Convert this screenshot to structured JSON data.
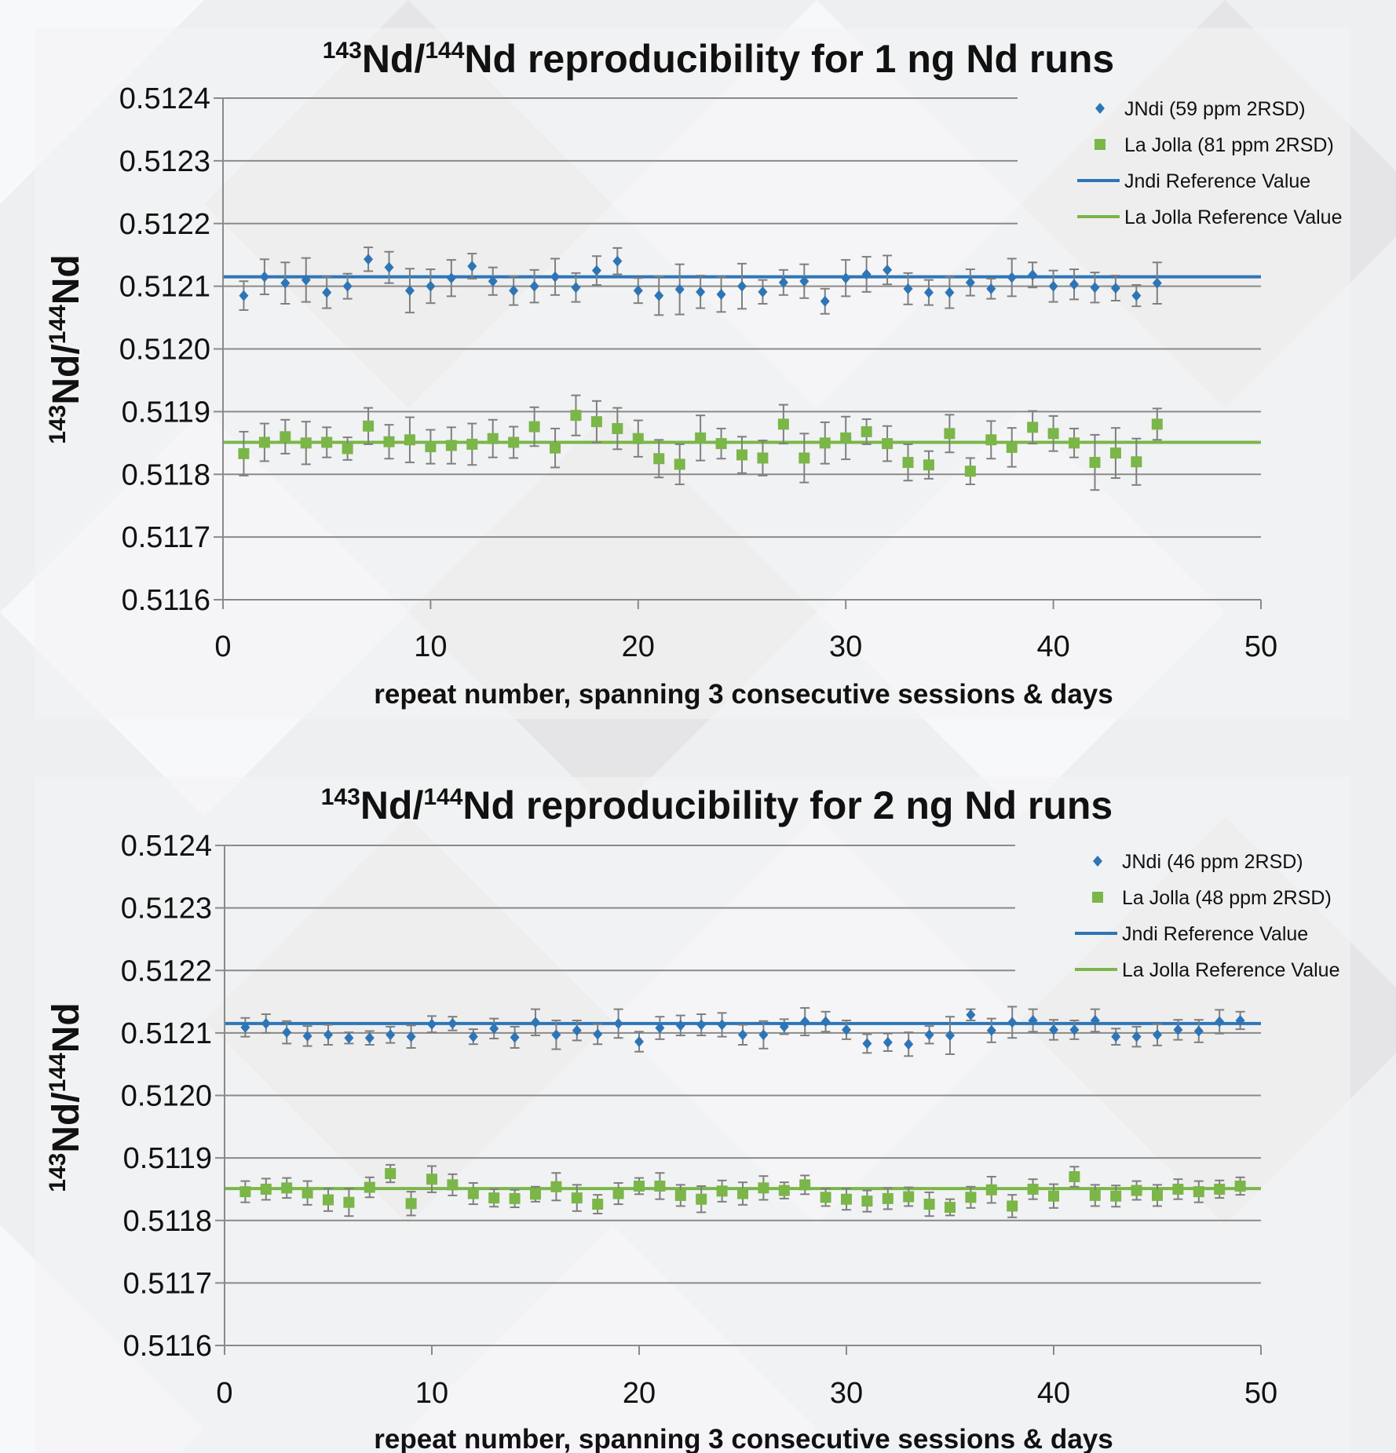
{
  "chart_data": [
    {
      "type": "scatter",
      "title_prefix_sup": "143",
      "title_mid": "Nd/",
      "title_sup2": "144",
      "title_rest": "Nd reproducibility for 1 ng Nd runs",
      "xlabel": "repeat number, spanning 3 consecutive sessions & days",
      "ylabel_sup1": "143",
      "ylabel_mid": "Nd/",
      "ylabel_sup2": "144",
      "ylabel_end": "Nd",
      "xlim": [
        0,
        50
      ],
      "ylim": [
        0.5116,
        0.5124
      ],
      "x_ticks": [
        "0",
        "10",
        "20",
        "30",
        "40",
        "50"
      ],
      "y_ticks": [
        "0.5116",
        "0.5117",
        "0.5118",
        "0.5119",
        "0.5120",
        "0.5121",
        "0.5122",
        "0.5123",
        "0.5124"
      ],
      "grid": true,
      "legend_position": "top-right",
      "series": [
        {
          "name": "JNdi (59 ppm 2RSD)",
          "marker": "diamond",
          "color": "#2e75b6",
          "x": [
            1,
            2,
            3,
            4,
            5,
            6,
            7,
            8,
            9,
            10,
            11,
            12,
            13,
            14,
            15,
            16,
            17,
            18,
            19,
            20,
            21,
            22,
            23,
            24,
            25,
            26,
            27,
            28,
            29,
            30,
            31,
            32,
            33,
            34,
            35,
            36,
            37,
            38,
            39,
            40,
            41,
            42,
            43,
            44,
            45
          ],
          "y": [
            0.512085,
            0.512115,
            0.512105,
            0.51211,
            0.51209,
            0.5121,
            0.512143,
            0.51213,
            0.512093,
            0.5121,
            0.512113,
            0.512132,
            0.512108,
            0.512093,
            0.5121,
            0.512115,
            0.512098,
            0.512125,
            0.51214,
            0.512093,
            0.512085,
            0.512095,
            0.512091,
            0.512087,
            0.5121,
            0.512091,
            0.512106,
            0.512108,
            0.512076,
            0.512113,
            0.512119,
            0.512126,
            0.512096,
            0.51209,
            0.51209,
            0.512106,
            0.512096,
            0.512114,
            0.512118,
            0.5121,
            0.512103,
            0.512098,
            0.512097,
            0.512085,
            0.512105
          ],
          "err": [
            2.3e-05,
            2.8e-05,
            3.3e-05,
            3.5e-05,
            2.5e-05,
            2e-05,
            1.9e-05,
            2.5e-05,
            3.5e-05,
            2.7e-05,
            2.9e-05,
            2e-05,
            2.2e-05,
            2.3e-05,
            2.6e-05,
            2.9e-05,
            2.3e-05,
            2.3e-05,
            2.1e-05,
            2e-05,
            3.1e-05,
            4e-05,
            2.6e-05,
            2.8e-05,
            3.6e-05,
            1.9e-05,
            2e-05,
            2.7e-05,
            2e-05,
            2.9e-05,
            2.8e-05,
            2.3e-05,
            2.5e-05,
            2e-05,
            2.5e-05,
            2.1e-05,
            1.6e-05,
            3e-05,
            2e-05,
            2.5e-05,
            2.4e-05,
            2.4e-05,
            2e-05,
            1.7e-05,
            3.3e-05
          ]
        },
        {
          "name": "La Jolla (81 ppm 2RSD)",
          "marker": "square",
          "color": "#7ab648",
          "x": [
            1,
            2,
            3,
            4,
            5,
            6,
            7,
            8,
            9,
            10,
            11,
            12,
            13,
            14,
            15,
            16,
            17,
            18,
            19,
            20,
            21,
            22,
            23,
            24,
            25,
            26,
            27,
            28,
            29,
            30,
            31,
            32,
            33,
            34,
            35,
            36,
            37,
            38,
            39,
            40,
            41,
            42,
            43,
            44,
            45
          ],
          "y": [
            0.511833,
            0.511851,
            0.51186,
            0.51185,
            0.511851,
            0.511841,
            0.511877,
            0.511852,
            0.511855,
            0.511844,
            0.511846,
            0.511848,
            0.511857,
            0.511851,
            0.511876,
            0.511842,
            0.511894,
            0.511884,
            0.511873,
            0.511857,
            0.511825,
            0.511816,
            0.511858,
            0.511849,
            0.511831,
            0.511826,
            0.51188,
            0.511826,
            0.51185,
            0.511858,
            0.511868,
            0.511849,
            0.511819,
            0.511815,
            0.511865,
            0.511805,
            0.511855,
            0.511843,
            0.511875,
            0.511865,
            0.51185,
            0.511819,
            0.511834,
            0.51182,
            0.51188
          ],
          "err": [
            3.5e-05,
            3e-05,
            2.7e-05,
            3.4e-05,
            2.4e-05,
            1.8e-05,
            2.9e-05,
            2.7e-05,
            3.6e-05,
            2.7e-05,
            2.9e-05,
            3.3e-05,
            3e-05,
            2.5e-05,
            3.1e-05,
            3.1e-05,
            3.2e-05,
            3.3e-05,
            3.3e-05,
            2.9e-05,
            3e-05,
            3.2e-05,
            3.6e-05,
            2.4e-05,
            2.9e-05,
            2.8e-05,
            3.1e-05,
            3.9e-05,
            3.3e-05,
            3.4e-05,
            2e-05,
            2.8e-05,
            2.9e-05,
            2.2e-05,
            3e-05,
            2.1e-05,
            3e-05,
            3.1e-05,
            2.6e-05,
            2.8e-05,
            2.3e-05,
            4.4e-05,
            4e-05,
            3.7e-05,
            2.5e-05
          ]
        },
        {
          "name": "Jndi Reference Value",
          "type": "hline",
          "color": "#2e75b6",
          "value": 0.512115
        },
        {
          "name": "La Jolla Reference Value",
          "type": "hline",
          "color": "#7ab648",
          "value": 0.511851
        }
      ]
    },
    {
      "type": "scatter",
      "title_prefix_sup": "143",
      "title_mid": "Nd/",
      "title_sup2": "144",
      "title_rest": "Nd reproducibility for 2 ng Nd runs",
      "xlabel": "repeat number, spanning 3 consecutive sessions & days",
      "ylabel_sup1": "143",
      "ylabel_mid": "Nd/",
      "ylabel_sup2": "144",
      "ylabel_end": "Nd",
      "xlim": [
        0,
        50
      ],
      "ylim": [
        0.5116,
        0.5124
      ],
      "x_ticks": [
        "0",
        "10",
        "20",
        "30",
        "40",
        "50"
      ],
      "y_ticks": [
        "0.5116",
        "0.5117",
        "0.5118",
        "0.5119",
        "0.5120",
        "0.5121",
        "0.5122",
        "0.5123",
        "0.5124"
      ],
      "grid": true,
      "legend_position": "top-right",
      "series": [
        {
          "name": "JNdi (46 ppm 2RSD)",
          "marker": "diamond",
          "color": "#2e75b6",
          "x": [
            1,
            2,
            3,
            4,
            5,
            6,
            7,
            8,
            9,
            10,
            11,
            12,
            13,
            14,
            15,
            16,
            17,
            18,
            19,
            20,
            21,
            22,
            23,
            24,
            25,
            26,
            27,
            28,
            29,
            30,
            31,
            32,
            33,
            34,
            35,
            36,
            37,
            38,
            39,
            40,
            41,
            42,
            43,
            44,
            45,
            46,
            47,
            48,
            49
          ],
          "y": [
            0.512109,
            0.512115,
            0.512101,
            0.512095,
            0.512097,
            0.512092,
            0.512092,
            0.512097,
            0.512094,
            0.512114,
            0.512115,
            0.512094,
            0.512107,
            0.512093,
            0.512117,
            0.512097,
            0.512104,
            0.512098,
            0.512115,
            0.512086,
            0.512108,
            0.512112,
            0.512113,
            0.512113,
            0.512097,
            0.512097,
            0.51211,
            0.512118,
            0.512118,
            0.512105,
            0.512083,
            0.512085,
            0.512082,
            0.512097,
            0.512096,
            0.512129,
            0.512104,
            0.512117,
            0.51212,
            0.512105,
            0.512105,
            0.51212,
            0.512094,
            0.512094,
            0.512097,
            0.512105,
            0.512103,
            0.512118,
            0.51212
          ],
          "err": [
            1.5e-05,
            1.5e-05,
            1.8e-05,
            1.6e-05,
            1.6e-05,
            9e-06,
            1.1e-05,
            1.3e-05,
            1.8e-05,
            1.3e-05,
            1.1e-05,
            1.2e-05,
            1.6e-05,
            1.7e-05,
            2.1e-05,
            2.3e-05,
            1.6e-05,
            1.6e-05,
            2.3e-05,
            1.6e-05,
            1.8e-05,
            1.6e-05,
            1.7e-05,
            1.9e-05,
            1.6e-05,
            2.2e-05,
            1.2e-05,
            2.2e-05,
            1.6e-05,
            1.5e-05,
            1.5e-05,
            1.4e-05,
            1.9e-05,
            1.4e-05,
            3e-05,
            9e-06,
            1.9e-05,
            2.5e-05,
            1.8e-05,
            1.6e-05,
            1.5e-05,
            1.8e-05,
            1.3e-05,
            1.6e-05,
            1.7e-05,
            1.6e-05,
            1.8e-05,
            1.9e-05,
            1.4e-05
          ]
        },
        {
          "name": "La Jolla (48 ppm 2RSD)",
          "marker": "square",
          "color": "#7ab648",
          "x": [
            1,
            2,
            3,
            4,
            5,
            6,
            7,
            8,
            9,
            10,
            11,
            12,
            13,
            14,
            15,
            16,
            17,
            18,
            19,
            20,
            21,
            22,
            23,
            24,
            25,
            26,
            27,
            28,
            29,
            30,
            31,
            32,
            33,
            34,
            35,
            36,
            37,
            38,
            39,
            40,
            41,
            42,
            43,
            44,
            45,
            46,
            47,
            48,
            49
          ],
          "y": [
            0.511846,
            0.51185,
            0.511852,
            0.511844,
            0.511833,
            0.511829,
            0.511853,
            0.511875,
            0.511827,
            0.511866,
            0.511857,
            0.511843,
            0.511836,
            0.511835,
            0.511842,
            0.511854,
            0.511836,
            0.511826,
            0.511843,
            0.511855,
            0.511855,
            0.51184,
            0.511834,
            0.511847,
            0.511843,
            0.511852,
            0.511848,
            0.511857,
            0.511837,
            0.511834,
            0.511831,
            0.511835,
            0.511838,
            0.511826,
            0.511821,
            0.511837,
            0.511849,
            0.511823,
            0.51185,
            0.511839,
            0.51187,
            0.51184,
            0.511839,
            0.511848,
            0.51184,
            0.51185,
            0.511846,
            0.51185,
            0.511855
          ],
          "err": [
            1.7e-05,
            1.7e-05,
            1.6e-05,
            1.9e-05,
            1.8e-05,
            2.2e-05,
            1.6e-05,
            1.4e-05,
            1.9e-05,
            2.1e-05,
            1.7e-05,
            1.7e-05,
            1.4e-05,
            1.4e-05,
            1.2e-05,
            2.2e-05,
            2.1e-05,
            1.5e-05,
            1.7e-05,
            1.3e-05,
            2.1e-05,
            1.7e-05,
            2.1e-05,
            1.7e-05,
            1.8e-05,
            1.9e-05,
            1.3e-05,
            1.5e-05,
            1.4e-05,
            1.7e-05,
            1.7e-05,
            1.7e-05,
            1.5e-05,
            1.9e-05,
            1.3e-05,
            1.7e-05,
            2.1e-05,
            1.8e-05,
            1.6e-05,
            1.9e-05,
            1.6e-05,
            1.7e-05,
            1.7e-05,
            1.5e-05,
            1.7e-05,
            1.6e-05,
            1.7e-05,
            1.4e-05,
            1.4e-05
          ]
        },
        {
          "name": "Jndi Reference Value",
          "type": "hline",
          "color": "#2e75b6",
          "value": 0.512115
        },
        {
          "name": "La Jolla Reference Value",
          "type": "hline",
          "color": "#7ab648",
          "value": 0.511851
        }
      ]
    }
  ]
}
